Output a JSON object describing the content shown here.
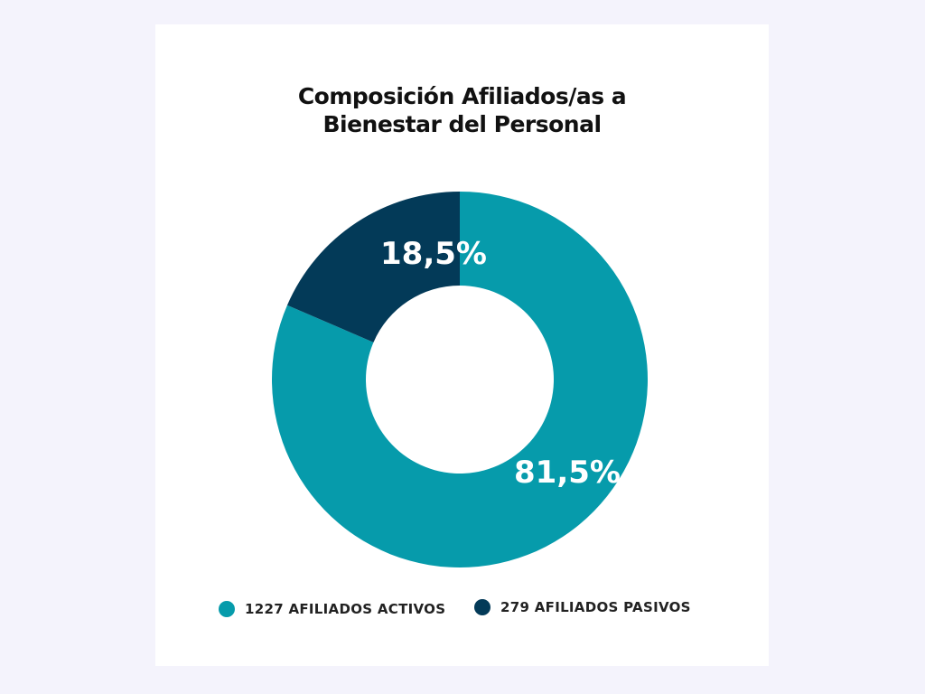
{
  "title_lines": [
    "Composición Afiliados/as a",
    "Bienestar del Personal"
  ],
  "colors": {
    "background": "#f4f3fc",
    "card": "#ffffff",
    "activos": "#069bab",
    "pasivos": "#033a58"
  },
  "chart_data": {
    "type": "pie",
    "donut": true,
    "title": "Composición Afiliados/as a Bienestar del Personal",
    "categories": [
      "AFILIADOS ACTIVOS",
      "AFILIADOS PASIVOS"
    ],
    "values": [
      1227,
      279
    ],
    "percent_labels": [
      "81,5%",
      "18,5%"
    ],
    "legend_labels": [
      "1227 AFILIADOS ACTIVOS",
      "279 AFILIADOS PASIVOS"
    ],
    "legend": "bottom"
  }
}
